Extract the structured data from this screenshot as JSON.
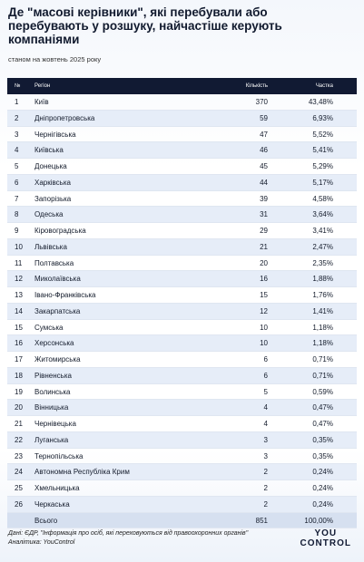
{
  "header": {
    "title": "Де \"масові керівники\", які перебували або перебувають у розшуку, найчастіше керують компаніями",
    "subtitle": "станом на жовтень 2025 року"
  },
  "table": {
    "columns": [
      "№",
      "Регіон",
      "Кількість",
      "Частка"
    ],
    "rows": [
      [
        1,
        "Київ",
        370,
        "43,48%"
      ],
      [
        2,
        "Дніпропетровська",
        59,
        "6,93%"
      ],
      [
        3,
        "Чернігівська",
        47,
        "5,52%"
      ],
      [
        4,
        "Київська",
        46,
        "5,41%"
      ],
      [
        5,
        "Донецька",
        45,
        "5,29%"
      ],
      [
        6,
        "Харківська",
        44,
        "5,17%"
      ],
      [
        7,
        "Запорізька",
        39,
        "4,58%"
      ],
      [
        8,
        "Одеська",
        31,
        "3,64%"
      ],
      [
        9,
        "Кіровоградська",
        29,
        "3,41%"
      ],
      [
        10,
        "Львівська",
        21,
        "2,47%"
      ],
      [
        11,
        "Полтавська",
        20,
        "2,35%"
      ],
      [
        12,
        "Миколаївська",
        16,
        "1,88%"
      ],
      [
        13,
        "Івано-Франківська",
        15,
        "1,76%"
      ],
      [
        14,
        "Закарпатська",
        12,
        "1,41%"
      ],
      [
        15,
        "Сумська",
        10,
        "1,18%"
      ],
      [
        16,
        "Херсонська",
        10,
        "1,18%"
      ],
      [
        17,
        "Житомирська",
        6,
        "0,71%"
      ],
      [
        18,
        "Рівненська",
        6,
        "0,71%"
      ],
      [
        19,
        "Волинська",
        5,
        "0,59%"
      ],
      [
        20,
        "Вінницька",
        4,
        "0,47%"
      ],
      [
        21,
        "Чернівецька",
        4,
        "0,47%"
      ],
      [
        22,
        "Луганська",
        3,
        "0,35%"
      ],
      [
        23,
        "Тернопільська",
        3,
        "0,35%"
      ],
      [
        24,
        "Автономна Республіка Крим",
        2,
        "0,24%"
      ],
      [
        25,
        "Хмельницька",
        2,
        "0,24%"
      ],
      [
        26,
        "Черкаська",
        2,
        "0,24%"
      ]
    ],
    "total": [
      "Всього",
      851,
      "100,00%"
    ]
  },
  "footer": {
    "source": "Дані: ЄДР, \"Інформація про осіб, які переховуються від правоохоронних органів\"",
    "analytics": "Аналітика: YouControl",
    "logo": [
      "YOU",
      "CONTROL"
    ]
  }
}
